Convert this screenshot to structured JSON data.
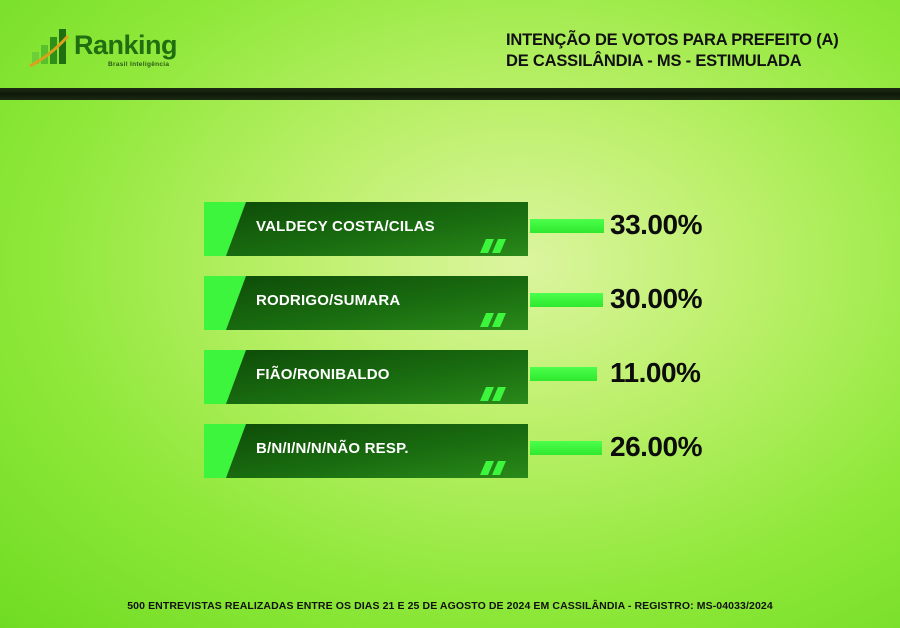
{
  "brand": {
    "name": "Ranking",
    "tagline": "Brasil Inteligência",
    "logo_icon": "bar-growth-icon",
    "accent_color": "#1f6e10"
  },
  "title": {
    "line1": "INTENÇÃO DE VOTOS PARA PREFEITO (A)",
    "line2": "DE CASSILÂNDIA - MS - ESTIMULADA"
  },
  "footer": "500 ENTREVISTAS REALIZADAS ENTRE OS DIAS 21 E 25 DE AGOSTO DE 2024 EM CASSILÂNDIA - REGISTRO: MS-04033/2024",
  "chart_data": {
    "type": "bar",
    "orientation": "horizontal",
    "categories": [
      "VALDECY COSTA/CILAS",
      "RODRIGO/SUMARA",
      "FIÃO/RONIBALDO",
      "B/N/I/N/N/NÃO RESP."
    ],
    "values": [
      33.0,
      30.0,
      11.0,
      26.0
    ],
    "value_labels": [
      "33.00%",
      "30.00%",
      "11.00%",
      "26.00%"
    ],
    "unit": "%",
    "bar_color": "#3cf53c",
    "label_box_color": "#1a6a10"
  }
}
